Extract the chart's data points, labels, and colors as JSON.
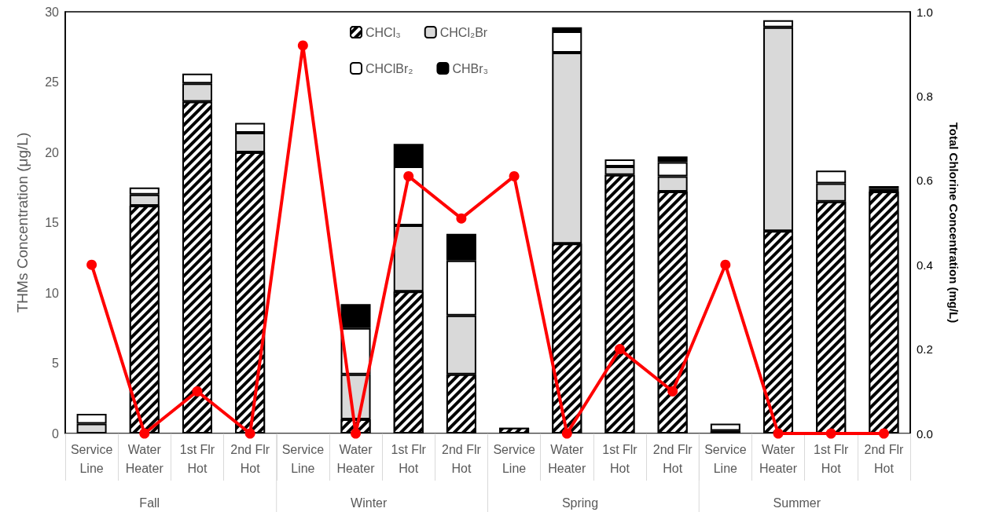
{
  "chart_data": {
    "type": "bar",
    "stacked": true,
    "categories": [
      "Service Line",
      "Water Heater",
      "1st Flr Hot",
      "2nd Flr Hot",
      "Service Line",
      "Water Heater",
      "1st Flr Hot",
      "2nd Flr Hot",
      "Service Line",
      "Water Heater",
      "1st Flr Hot",
      "2nd Flr Hot",
      "Service Line",
      "Water Heater",
      "1st Flr Hot",
      "2nd Flr Hot"
    ],
    "series": [
      {
        "name": "CHCl₃",
        "color": "#000000",
        "values": [
          0,
          16.2,
          23.6,
          20.0,
          0,
          1.0,
          10.1,
          4.2,
          0.4,
          13.5,
          18.4,
          17.2,
          0.2,
          14.4,
          16.5,
          17.2
        ]
      },
      {
        "name": "CHCl₂Br",
        "color": "#d9d9d9",
        "values": [
          0.7,
          0.8,
          1.3,
          1.4,
          0,
          3.2,
          4.7,
          4.2,
          0,
          13.6,
          0.6,
          1.1,
          0,
          14.5,
          1.3,
          0.2
        ]
      },
      {
        "name": "CHClBr₂",
        "color": "#ffffff",
        "values": [
          0.7,
          0.5,
          0.7,
          0.7,
          0,
          3.3,
          4.2,
          3.9,
          0,
          1.5,
          0.5,
          1.0,
          0.5,
          0.5,
          0.9,
          0
        ]
      },
      {
        "name": "CHBr₃",
        "color": "#000000",
        "values": [
          0,
          0,
          0,
          0,
          0,
          1.7,
          1.6,
          1.9,
          0,
          0.3,
          0,
          0.4,
          0,
          0,
          0,
          0.2
        ]
      },
      {
        "type": "line",
        "axis": "y2",
        "color": "#ff0000",
        "marker": "circle",
        "values": [
          0.4,
          0,
          0.1,
          0,
          0.92,
          0,
          0.61,
          0.51,
          0.61,
          0,
          0.2,
          0.1,
          0.4,
          0,
          0,
          0
        ]
      }
    ],
    "ylabel": "THMs Concentration (μg/L)",
    "y2label": "Total Chlorine Concentration (mg/L)",
    "ylim": [
      0,
      30
    ],
    "yticks": [
      0,
      5,
      10,
      15,
      20,
      25,
      30
    ],
    "y2lim": [
      0,
      1
    ],
    "y2ticks": [
      {
        "value": 0,
        "label": "0.0"
      },
      {
        "value": 0.2,
        "label": "0.2"
      },
      {
        "value": 0.4,
        "label": "0.4"
      },
      {
        "value": 0.6,
        "label": "0.6"
      },
      {
        "value": 0.8,
        "label": "0.8"
      },
      {
        "value": 1,
        "label": "1.0"
      }
    ],
    "legend": "top",
    "annotations": [
      "Fall",
      "Winter",
      "Spring",
      "Summer"
    ]
  }
}
